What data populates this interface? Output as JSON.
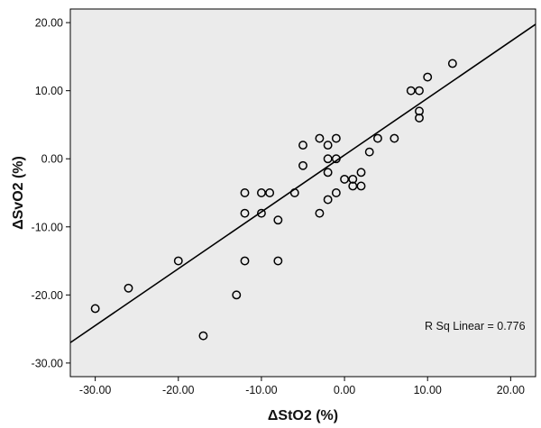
{
  "chart_data": {
    "type": "scatter",
    "title": "",
    "xlabel": "ΔStO2 (%)",
    "ylabel": "ΔSvO2 (%)",
    "xlim": [
      -33,
      23
    ],
    "ylim": [
      -32,
      22
    ],
    "x_ticks": [
      -30,
      -20,
      -10,
      0,
      10,
      20
    ],
    "y_ticks": [
      -30,
      -20,
      -10,
      0,
      10,
      20
    ],
    "x_tick_labels": [
      "-30.00",
      "-20.00",
      "-10.00",
      "0.00",
      "10.00",
      "20.00"
    ],
    "y_tick_labels": [
      "-30.00",
      "-20.00",
      "-10.00",
      "0.00",
      "10.00",
      "20.00"
    ],
    "grid": false,
    "background": "#ebebeb",
    "marker_color": "#000000",
    "points": [
      {
        "x": -30,
        "y": -22
      },
      {
        "x": -26,
        "y": -19
      },
      {
        "x": -20,
        "y": -15
      },
      {
        "x": -17,
        "y": -26
      },
      {
        "x": -13,
        "y": -20
      },
      {
        "x": -12,
        "y": -5
      },
      {
        "x": -12,
        "y": -8
      },
      {
        "x": -12,
        "y": -15
      },
      {
        "x": -10,
        "y": -5
      },
      {
        "x": -10,
        "y": -8
      },
      {
        "x": -9,
        "y": -5
      },
      {
        "x": -8,
        "y": -9
      },
      {
        "x": -8,
        "y": -15
      },
      {
        "x": -6,
        "y": -5
      },
      {
        "x": -5,
        "y": 2
      },
      {
        "x": -5,
        "y": -1
      },
      {
        "x": -3,
        "y": 3
      },
      {
        "x": -3,
        "y": -8
      },
      {
        "x": -2,
        "y": 2
      },
      {
        "x": -2,
        "y": 0
      },
      {
        "x": -2,
        "y": -2
      },
      {
        "x": -2,
        "y": -6
      },
      {
        "x": -1,
        "y": 3
      },
      {
        "x": -1,
        "y": 0
      },
      {
        "x": -1,
        "y": -5
      },
      {
        "x": 0,
        "y": -3
      },
      {
        "x": 1,
        "y": -3
      },
      {
        "x": 1,
        "y": -4
      },
      {
        "x": 2,
        "y": -2
      },
      {
        "x": 2,
        "y": -4
      },
      {
        "x": 3,
        "y": 1
      },
      {
        "x": 4,
        "y": 3
      },
      {
        "x": 6,
        "y": 3
      },
      {
        "x": 8,
        "y": 10
      },
      {
        "x": 9,
        "y": 10
      },
      {
        "x": 9,
        "y": 7
      },
      {
        "x": 9,
        "y": 6
      },
      {
        "x": 10,
        "y": 12
      },
      {
        "x": 13,
        "y": 14
      }
    ],
    "fit_line": {
      "type": "linear",
      "slope": 0.835,
      "intercept": 0.55
    },
    "annotation": "R Sq Linear = 0.776"
  }
}
